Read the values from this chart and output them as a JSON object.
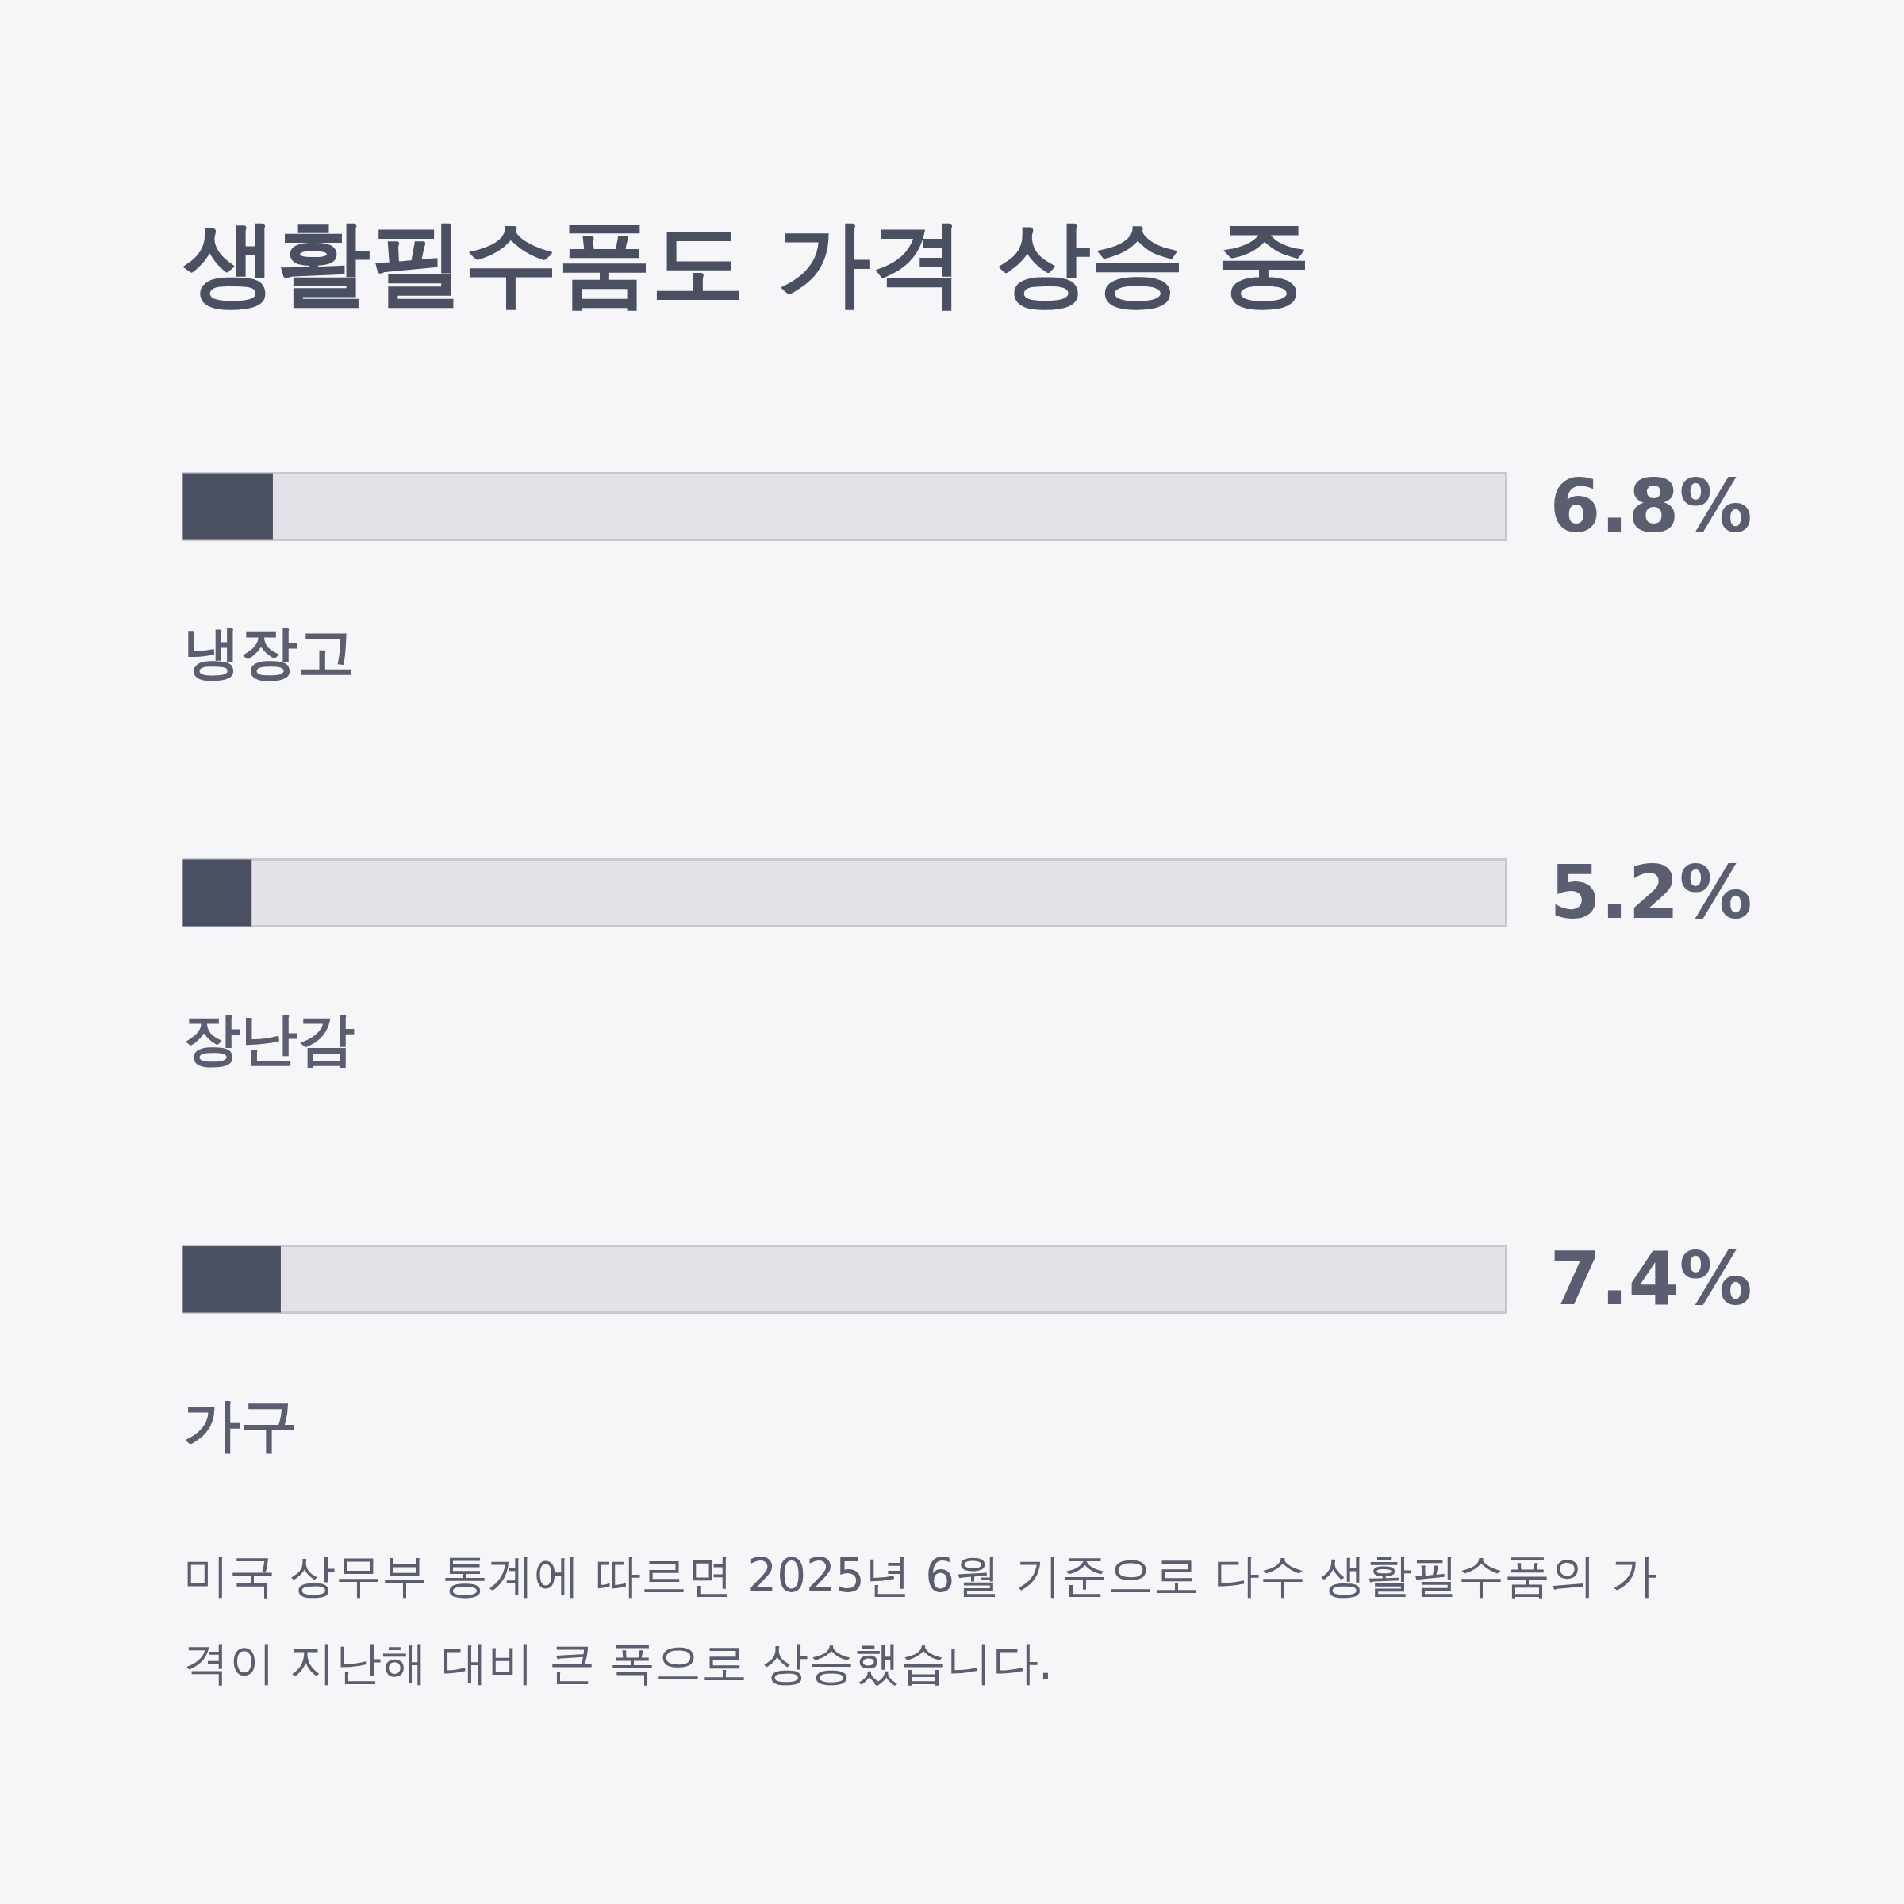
{
  "chart_data": {
    "type": "bar",
    "orientation": "horizontal",
    "title": "생활필수품도 가격 상승 중",
    "categories": [
      "냉장고",
      "장난감",
      "가구"
    ],
    "values": [
      6.8,
      5.2,
      7.4
    ],
    "value_labels": [
      "6.8%",
      "5.2%",
      "7.4%"
    ],
    "color": "#4b4f62",
    "xlim": [
      0,
      100
    ],
    "annotations": [
      "미국 상무부 통계에 따르면 2025년 6월 기준으로 다수 생활필수품의 가격이 지난해 대비 큰 폭으로 상승했습니다."
    ]
  }
}
